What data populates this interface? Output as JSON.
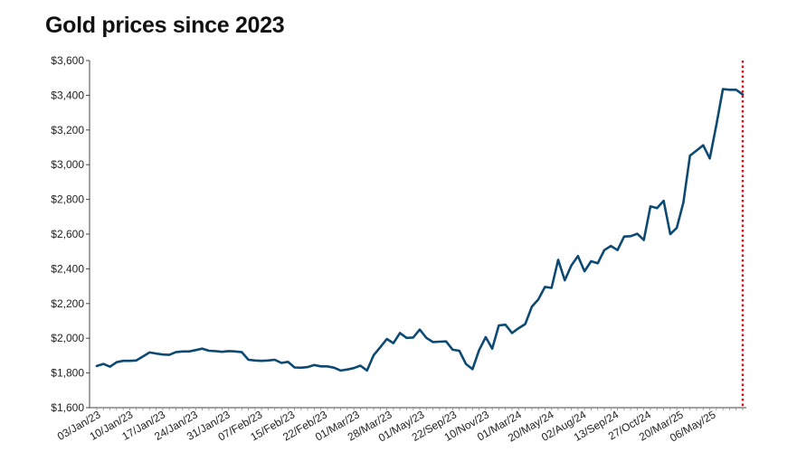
{
  "chart_data": {
    "type": "line",
    "title": "Gold prices since 2023",
    "xlabel": "",
    "ylabel": "",
    "ylim": [
      1600,
      3600
    ],
    "yticks": [
      1600,
      1800,
      2000,
      2200,
      2400,
      2600,
      2800,
      3000,
      3200,
      3400,
      3600
    ],
    "ytick_labels": [
      "$1,600",
      "$1,800",
      "$2,000",
      "$2,200",
      "$2,400",
      "$2,600",
      "$2,800",
      "$3,000",
      "$3,200",
      "$3,400",
      "$3,600"
    ],
    "xtick_labels": [
      "03/Jan/23",
      "10/Jan/23",
      "17/Jan/23",
      "24/Jan/23",
      "31/Jan/23",
      "07/Feb/23",
      "15/Feb/23",
      "22/Feb/23",
      "01/Mar/23",
      "28/Mar/23",
      "01/May/23",
      "22/Sep/23",
      "10/Nov/23",
      "01/Mar/24",
      "20/May/24",
      "02/Aug/24",
      "13/Sep/24",
      "27/Oct/24",
      "20/Mar/25",
      "06/May/25"
    ],
    "grid": false,
    "legend": "none",
    "line_color": "#0d4a73",
    "marker_line_color": "#d0111b",
    "marker_line_style": "dotted",
    "series": [
      {
        "values": [
          1840,
          1852,
          1836,
          1862,
          1870,
          1870,
          1872,
          1895,
          1918,
          1912,
          1906,
          1904,
          1920,
          1924,
          1924,
          1932,
          1940,
          1928,
          1926,
          1922,
          1926,
          1924,
          1920,
          1876,
          1872,
          1870,
          1872,
          1876,
          1858,
          1864,
          1832,
          1830,
          1834,
          1846,
          1838,
          1838,
          1830,
          1814,
          1820,
          1828,
          1842,
          1814,
          1902,
          1948,
          1996,
          1972,
          2030,
          2002,
          2004,
          2050,
          2002,
          1978,
          1980,
          1982,
          1934,
          1928,
          1852,
          1822,
          1932,
          2006,
          1940,
          2074,
          2078,
          2030,
          2058,
          2082,
          2182,
          2224,
          2296,
          2290,
          2452,
          2334,
          2420,
          2474,
          2386,
          2444,
          2432,
          2508,
          2532,
          2508,
          2586,
          2588,
          2602,
          2566,
          2760,
          2750,
          2792,
          2600,
          2636,
          2782,
          3052,
          3082,
          3112,
          3036,
          3230,
          3436,
          3432,
          3432,
          3404
        ]
      }
    ]
  }
}
